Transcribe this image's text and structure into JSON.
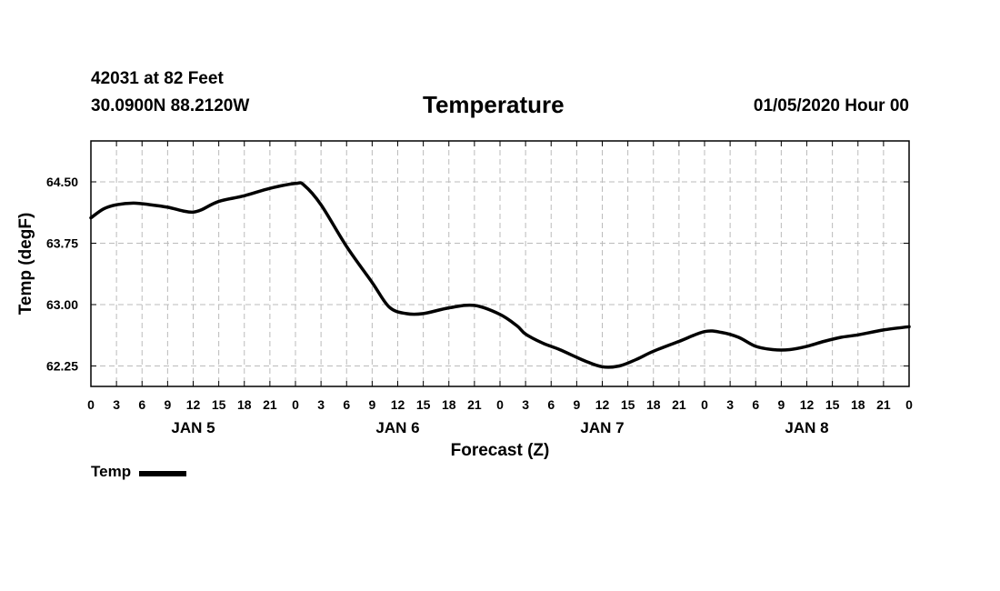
{
  "header": {
    "station": "42031 at 82 Feet",
    "coords": "30.0900N 88.2120W",
    "title": "Temperature",
    "timestamp": "01/05/2020 Hour 00"
  },
  "legend": {
    "label": "Temp"
  },
  "colors": {
    "line": "#000000",
    "grid": "#bbbbbb",
    "axis": "#000000"
  },
  "chart_data": {
    "type": "line",
    "title": "Temperature",
    "xlabel": "Forecast (Z)",
    "ylabel": "Temp (degF)",
    "ylim": [
      62.0,
      65.0
    ],
    "xlim": [
      0,
      96
    ],
    "yticks": [
      62.25,
      63.0,
      63.75,
      64.5
    ],
    "ytick_labels": [
      "62.25",
      "63.00",
      "63.75",
      "64.50"
    ],
    "xtick_hours": [
      0,
      3,
      6,
      9,
      12,
      15,
      18,
      21,
      24,
      27,
      30,
      33,
      36,
      39,
      42,
      45,
      48,
      51,
      54,
      57,
      60,
      63,
      66,
      69,
      72,
      75,
      78,
      81,
      84,
      87,
      90,
      93,
      96
    ],
    "xtick_labels": [
      "0",
      "3",
      "6",
      "9",
      "12",
      "15",
      "18",
      "21",
      "0",
      "3",
      "6",
      "9",
      "12",
      "15",
      "18",
      "21",
      "0",
      "3",
      "6",
      "9",
      "12",
      "15",
      "18",
      "21",
      "0",
      "3",
      "6",
      "9",
      "12",
      "15",
      "18",
      "21",
      "0"
    ],
    "day_labels": [
      {
        "label": "JAN 5",
        "hour": 12
      },
      {
        "label": "JAN 6",
        "hour": 36
      },
      {
        "label": "JAN 7",
        "hour": 60
      },
      {
        "label": "JAN 8",
        "hour": 84
      }
    ],
    "series": [
      {
        "name": "Temp",
        "x": [
          0,
          1.5,
          3,
          5,
          7,
          9,
          11,
          12,
          13,
          15,
          18,
          21,
          24,
          25,
          27,
          30,
          33,
          35,
          37,
          39,
          42,
          45,
          48,
          50,
          51,
          53,
          55,
          58,
          60,
          62,
          64,
          66,
          69,
          72,
          74,
          76,
          78,
          80,
          82,
          84,
          86,
          88,
          90,
          93,
          96
        ],
        "y": [
          64.06,
          64.17,
          64.22,
          64.24,
          64.22,
          64.19,
          64.14,
          64.13,
          64.16,
          64.26,
          64.33,
          64.42,
          64.48,
          64.46,
          64.22,
          63.71,
          63.27,
          62.97,
          62.89,
          62.89,
          62.96,
          62.99,
          62.88,
          62.74,
          62.64,
          62.53,
          62.45,
          62.31,
          62.24,
          62.25,
          62.33,
          62.43,
          62.55,
          62.67,
          62.66,
          62.6,
          62.49,
          62.45,
          62.45,
          62.49,
          62.55,
          62.6,
          62.63,
          62.69,
          62.73
        ]
      }
    ]
  }
}
